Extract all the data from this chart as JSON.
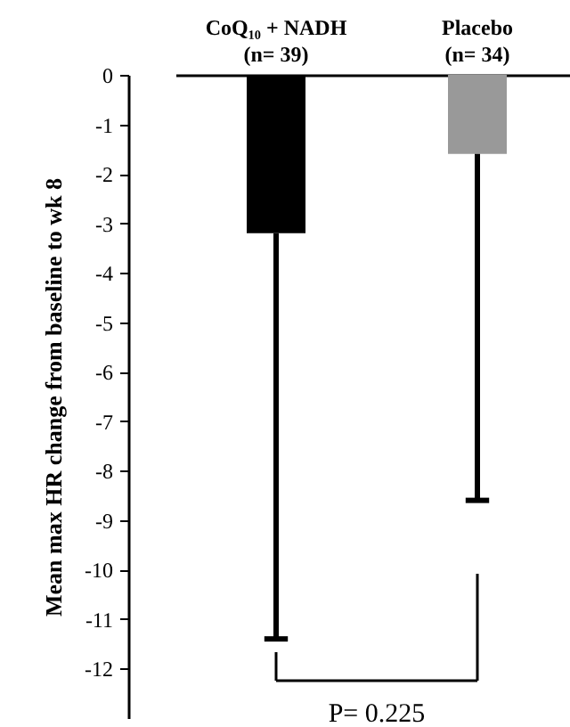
{
  "chart_data": {
    "type": "bar",
    "categories": [
      "CoQ₁₀ + NADH\n(n= 39)",
      "Placebo\n(n= 34)"
    ],
    "values": [
      -3.2,
      -1.6
    ],
    "colors": [
      "#000000",
      "#999999"
    ],
    "errors": [
      [
        -11.4,
        -3.2
      ],
      [
        -8.6,
        -1.6
      ]
    ],
    "ylabel": "Mean max HR change from baseline to wk 8",
    "ylim": [
      -13,
      0
    ],
    "yticks": [
      -12,
      -11,
      -10,
      -9,
      -8,
      -7,
      -6,
      -5,
      -4,
      -3,
      -2,
      -1,
      0
    ],
    "annotations": [
      "P= 0.225"
    ]
  }
}
